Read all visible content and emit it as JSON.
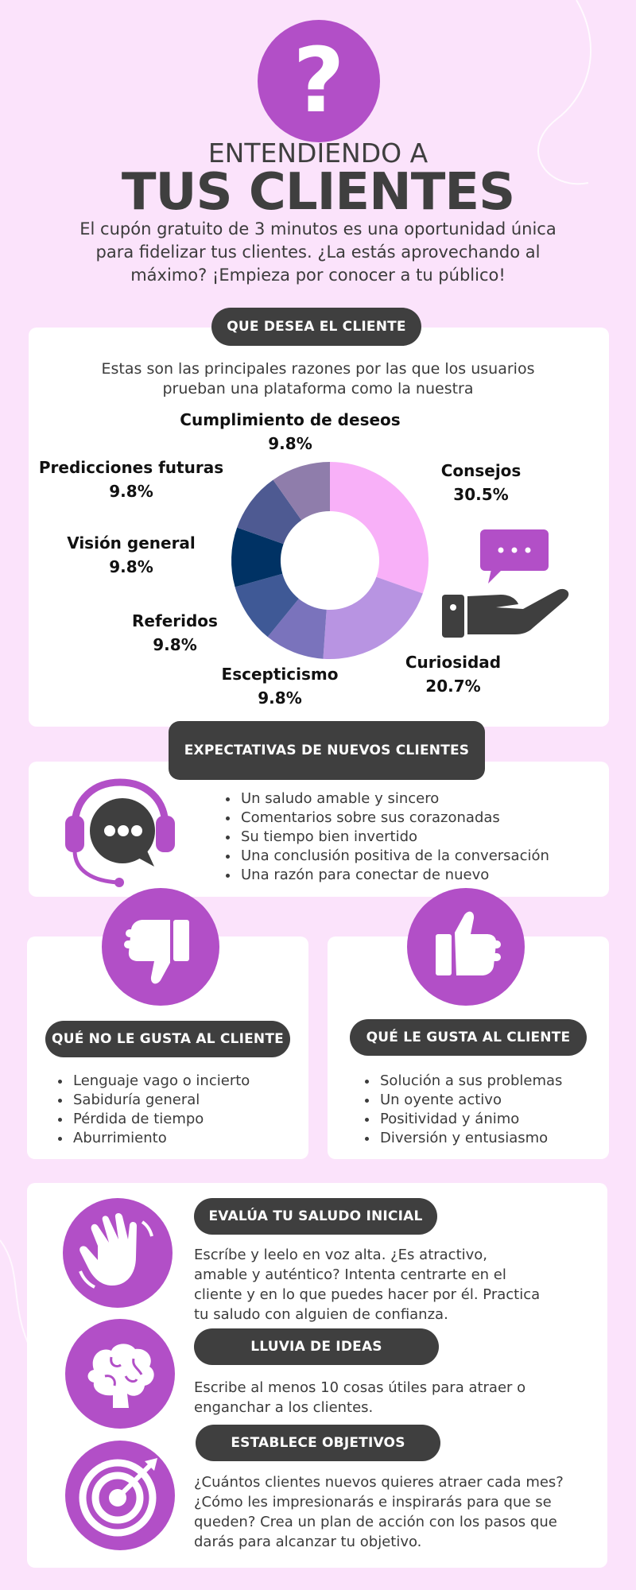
{
  "header": {
    "question_mark": "?",
    "title_line1": "ENTENDIENDO A",
    "title_line2": "TUS CLIENTES",
    "intro": "El cupón gratuito de 3 minutos es una oportunidad única para fidelizar tus clientes. ¿La estás aprovechando al máximo? ¡Empieza por conocer a tu público!"
  },
  "desea": {
    "heading": "QUE DESEA EL CLIENTE",
    "subtitle": "Estas son las principales razones por las que los usuarios prueban una plataforma como la nuestra"
  },
  "chart_data": {
    "type": "pie",
    "categories": [
      "Consejos",
      "Curiosidad",
      "Escepticismo",
      "Referidos",
      "Visión general",
      "Predicciones futuras",
      "Cumplimiento de deseos"
    ],
    "values": [
      30.5,
      20.7,
      9.8,
      9.8,
      9.8,
      9.8,
      9.8
    ],
    "labels": [
      "30.5%",
      "20.7%",
      "9.8%",
      "9.8%",
      "9.8%",
      "9.8%",
      "9.8%"
    ],
    "colors": [
      "#f8b0f8",
      "#b894e2",
      "#7a73bc",
      "#3f5996",
      "#003264",
      "#4e5a92",
      "#8f7dab"
    ],
    "donut": true,
    "legend": "labels-around"
  },
  "expectativas": {
    "heading": "EXPECTATIVAS DE NUEVOS CLIENTES",
    "items": [
      "Un saludo amable y sincero",
      "Comentarios sobre sus corazonadas",
      "Su tiempo bien invertido",
      "Una conclusión positiva de la conversación",
      "Una razón para conectar de nuevo"
    ]
  },
  "no_gusta": {
    "heading": "QUÉ NO LE GUSTA AL CLIENTE",
    "items": [
      "Lenguaje vago o incierto",
      "Sabiduría general",
      "Pérdida de tiempo",
      "Aburrimiento"
    ]
  },
  "gusta": {
    "heading": "QUÉ LE GUSTA AL CLIENTE",
    "items": [
      "Solución a sus problemas",
      "Un oyente activo",
      "Positividad y ánimo",
      "Diversión y entusiasmo"
    ]
  },
  "pasos": [
    {
      "heading": "EVALÚA TU SALUDO INICIAL",
      "text": "Escríbe y leelo en voz alta. ¿Es atractivo, amable y auténtico? Intenta centrarte en el cliente y en lo que puedes hacer por él. Practica tu saludo con alguien de confianza."
    },
    {
      "heading": "LLUVIA DE IDEAS",
      "text": "Escribe al menos 10 cosas útiles para atraer o enganchar a los clientes."
    },
    {
      "heading": "ESTABLECE OBJETIVOS",
      "text": "¿Cuántos clientes nuevos quieres atraer cada mes? ¿Cómo les impresionarás e inspirarás para que se queden? Crea un plan de acción con los pasos que darás para alcanzar tu objetivo."
    }
  ],
  "icons": {
    "header": "question-mark-icon",
    "chart_side": "hand-speech-bubble-icon",
    "expectativas": "headset-chat-icon",
    "no_gusta": "thumbs-down-icon",
    "gusta": "thumbs-up-icon",
    "paso1": "waving-hand-icon",
    "paso2": "brain-icon",
    "paso3": "target-icon"
  },
  "colors": {
    "background": "#fbe3fb",
    "accent": "#b24fc7",
    "dark": "#3f3f3f"
  }
}
